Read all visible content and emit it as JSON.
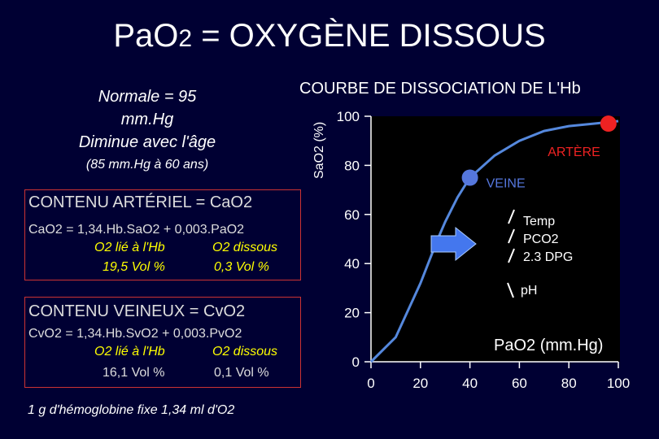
{
  "title": {
    "main": "PaO",
    "sub": "2",
    "rest": " = OXYGÈNE DISSOUS"
  },
  "normal_note": {
    "line1": "Normale = 95",
    "line2": "mm.Hg",
    "line3": "Diminue avec l'âge",
    "line4": "(85 mm.Hg à 60 ans)"
  },
  "arterial": {
    "heading": "CONTENU ARTÉRIEL = CaO2",
    "formula": "CaO2 = 1,34.Hb.SaO2 + 0,003.PaO2",
    "label_bound": "O2 lié à l'Hb",
    "label_dissolved": "O2 dissous",
    "value_bound": "19,5 Vol %",
    "value_dissolved": "0,3 Vol %"
  },
  "venous": {
    "heading": "CONTENU VEINEUX = CvO2",
    "formula": "CvO2 = 1,34.Hb.SvO2 + 0,003.PvO2",
    "label_bound": "O2 lié à l'Hb",
    "label_dissolved": "O2 dissous",
    "value_bound": "16,1 Vol %",
    "value_dissolved": "0,1 Vol %"
  },
  "footnote": "1 g d'hémoglobine fixe 1,34 ml d'O2",
  "colors": {
    "background": "#000033",
    "accent_red": "#cc3333",
    "yellow": "#ffff00",
    "vein_blue": "#5577dd",
    "artery_red": "#ee2222",
    "arrow_blue": "#4477ee"
  },
  "chart_data": {
    "type": "line",
    "title": "COURBE DE DISSOCIATION DE L'Hb",
    "xlabel": "PaO2 (mm.Hg)",
    "ylabel": "SaO2 (%)",
    "xlim": [
      0,
      100
    ],
    "ylim": [
      0,
      100
    ],
    "x_ticks": [
      "0",
      "20",
      "40",
      "60",
      "80",
      "100"
    ],
    "y_ticks": [
      "0",
      "20",
      "40",
      "60",
      "80",
      "100"
    ],
    "series": [
      {
        "x": [
          0,
          10,
          20,
          27,
          30,
          35,
          40,
          50,
          60,
          70,
          80,
          90,
          100
        ],
        "y": [
          0,
          10,
          32,
          50,
          57,
          67,
          75,
          84,
          90,
          94,
          96,
          97,
          98
        ]
      }
    ],
    "points": [
      {
        "label": "VEINE",
        "x": 40,
        "y": 75,
        "color": "#5577dd"
      },
      {
        "label": "ARTÈRE",
        "x": 96,
        "y": 97,
        "color": "#ee2222"
      }
    ],
    "shift_factors": [
      "Temp",
      "PCO2",
      "2.3 DPG",
      "pH"
    ]
  }
}
